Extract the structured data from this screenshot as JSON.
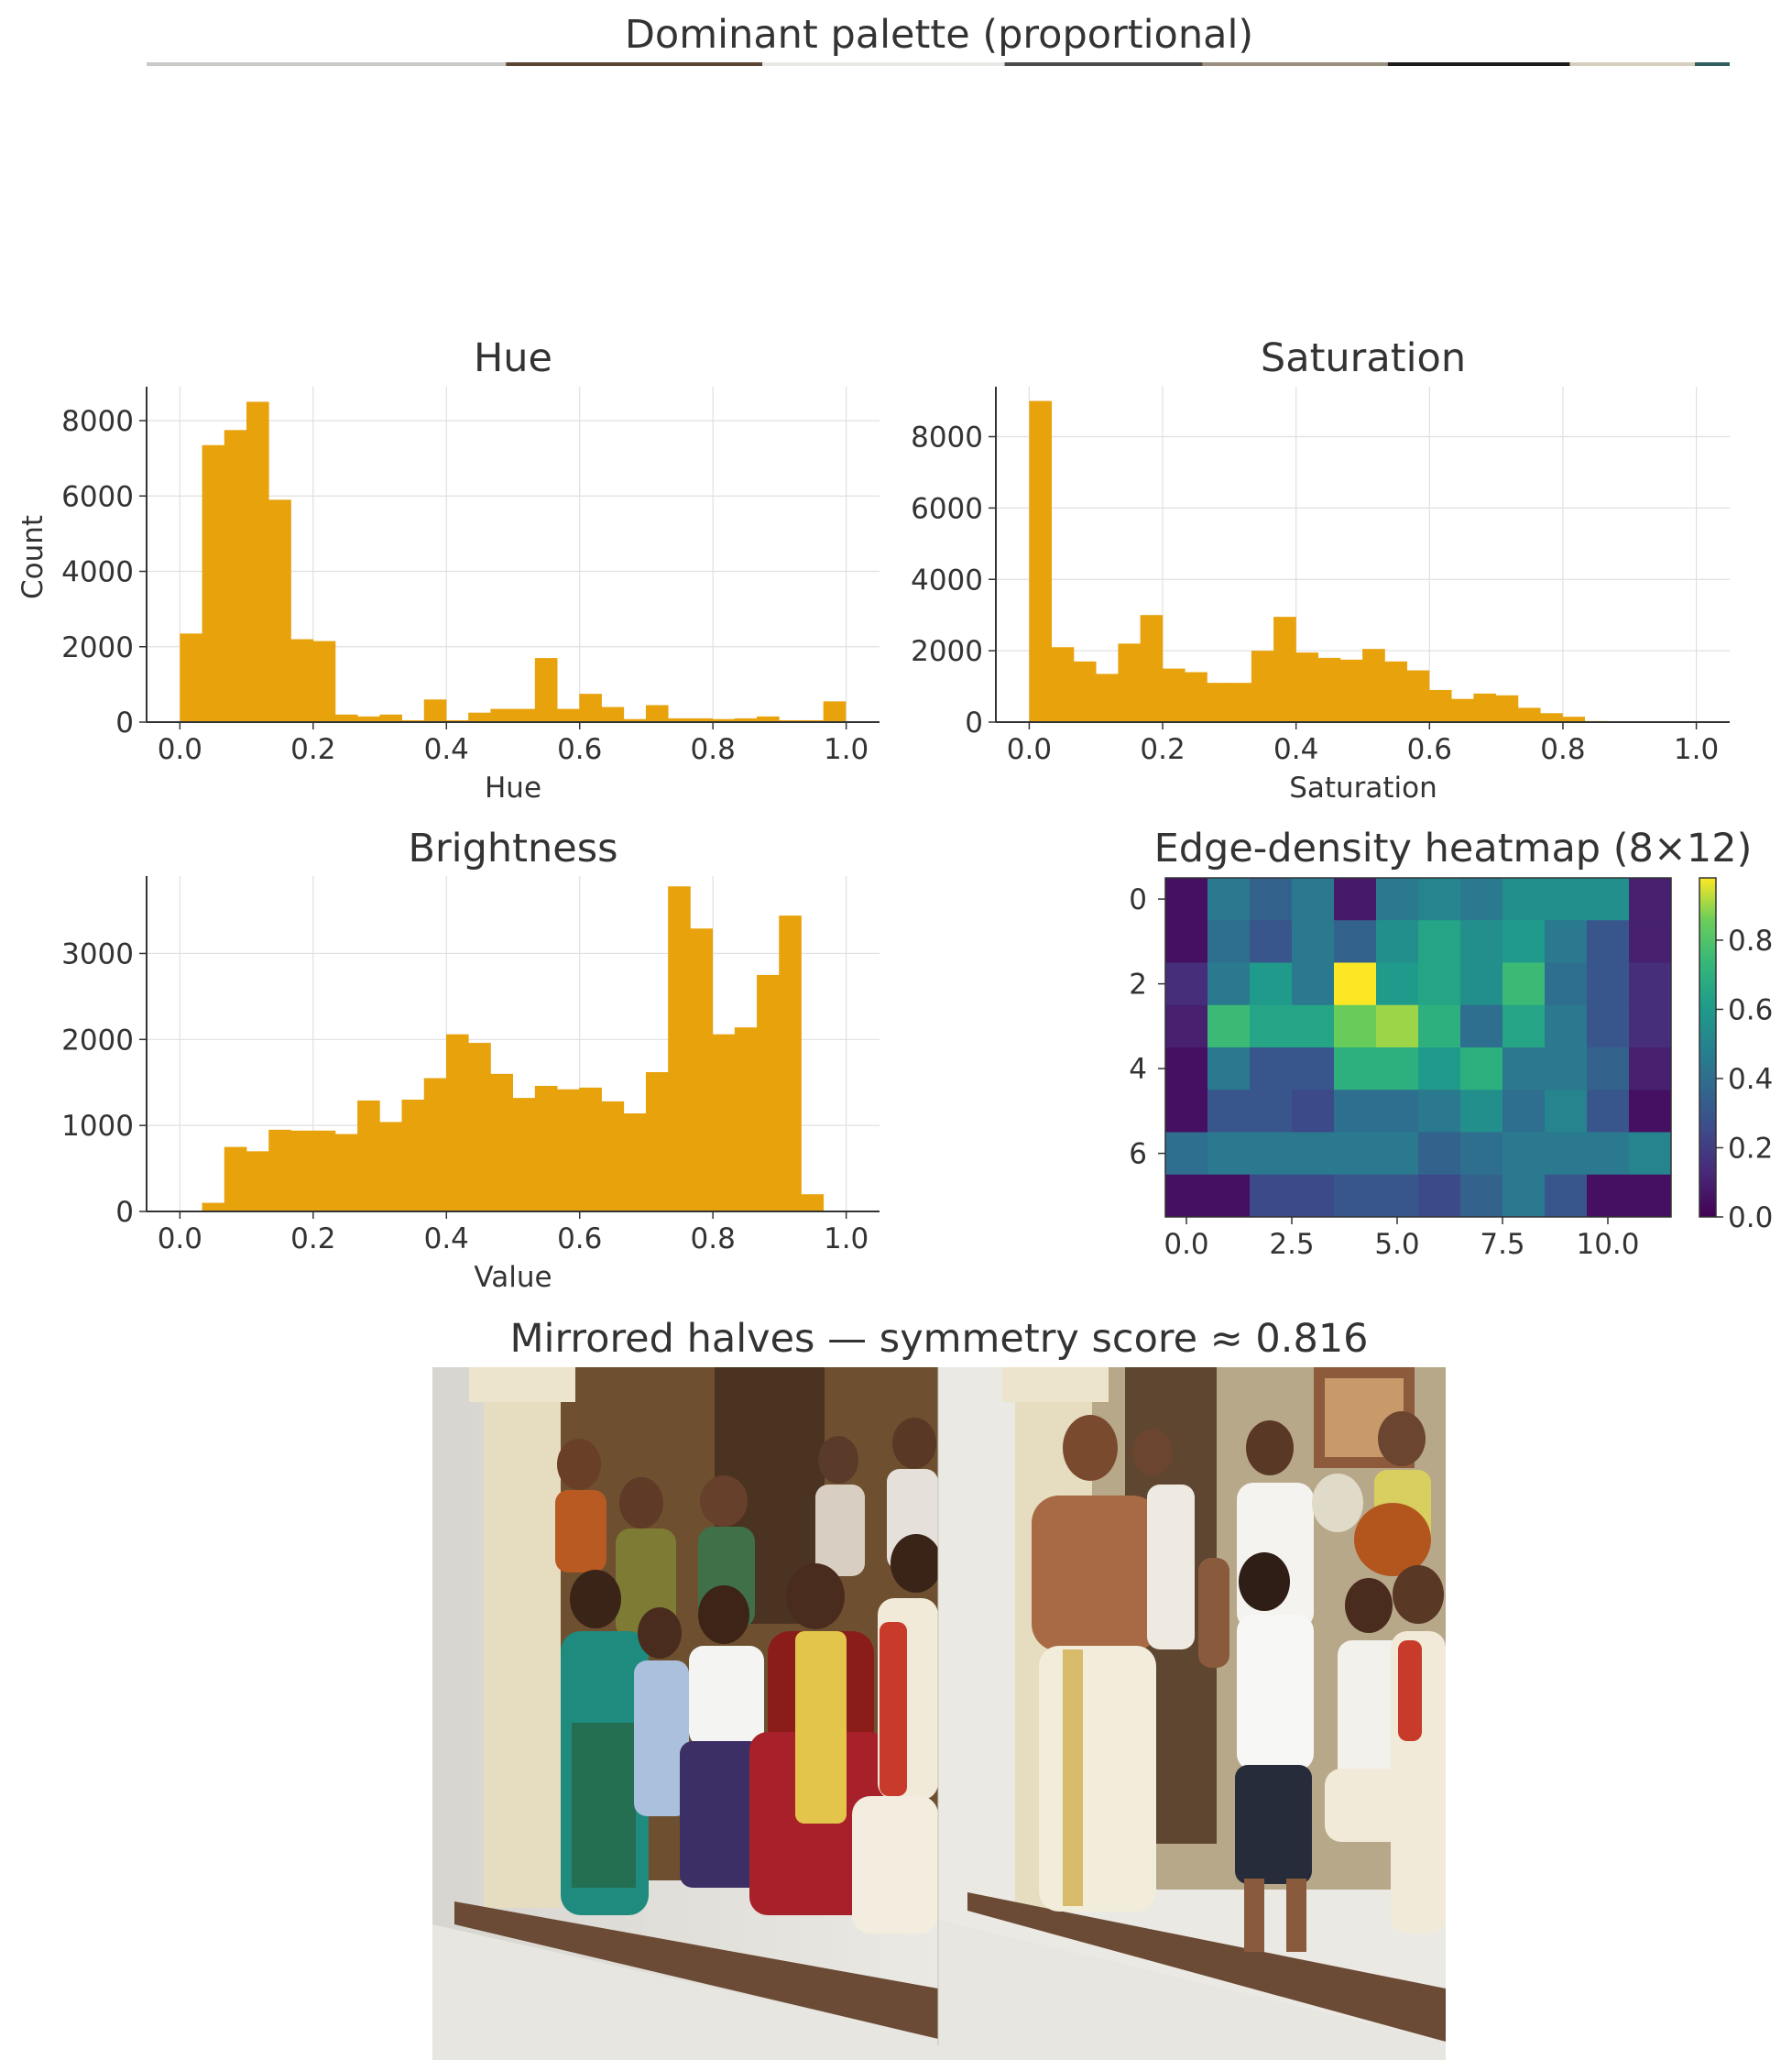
{
  "palette": {
    "title": "Dominant palette (proportional)",
    "swatches": [
      {
        "color": "#c9c9c6",
        "share": 0.227
      },
      {
        "color": "#5a4532",
        "share": 0.162
      },
      {
        "color": "#e9e8e4",
        "share": 0.153
      },
      {
        "color": "#4a4a48",
        "share": 0.125
      },
      {
        "color": "#9a8f7e",
        "share": 0.117
      },
      {
        "color": "#1e1c1a",
        "share": 0.115
      },
      {
        "color": "#d6cfbd",
        "share": 0.079
      },
      {
        "color": "#2f5e5e",
        "share": 0.022
      }
    ]
  },
  "hue": {
    "title": "Hue",
    "xlabel": "Hue",
    "ylabel": "Count",
    "xticks": [
      "0.0",
      "0.2",
      "0.4",
      "0.6",
      "0.8",
      "1.0"
    ],
    "yticks": [
      "0",
      "2000",
      "4000",
      "6000",
      "8000"
    ]
  },
  "saturation": {
    "title": "Saturation",
    "xlabel": "Saturation",
    "ylabel": "",
    "xticks": [
      "0.0",
      "0.2",
      "0.4",
      "0.6",
      "0.8",
      "1.0"
    ],
    "yticks": [
      "0",
      "2000",
      "4000",
      "6000",
      "8000"
    ]
  },
  "brightness": {
    "title": "Brightness",
    "xlabel": "Value",
    "ylabel": "",
    "xticks": [
      "0.0",
      "0.2",
      "0.4",
      "0.6",
      "0.8",
      "1.0"
    ],
    "yticks": [
      "0",
      "1000",
      "2000",
      "3000"
    ]
  },
  "heatmap": {
    "title": "Edge-density heatmap (8×12)",
    "xticks": [
      "0.0",
      "2.5",
      "5.0",
      "7.5",
      "10.0"
    ],
    "yticks": [
      "0",
      "2",
      "4",
      "6"
    ],
    "cbar_ticks": [
      "0.0",
      "0.2",
      "0.4",
      "0.6",
      "0.8"
    ]
  },
  "symmetry": {
    "title": "Mirrored halves — symmetry score ≈ 0.816"
  },
  "chart_data": [
    {
      "type": "bar",
      "name": "hue_histogram",
      "title": "Hue",
      "xlabel": "Hue",
      "ylabel": "Count",
      "bin_start": 0.0,
      "bin_width": 0.0333,
      "color": "#e8a20c",
      "values": [
        2350,
        7350,
        7750,
        8500,
        5900,
        2200,
        2150,
        200,
        150,
        200,
        50,
        600,
        50,
        250,
        350,
        350,
        1700,
        350,
        750,
        400,
        80,
        450,
        100,
        100,
        80,
        100,
        150,
        50,
        50,
        550
      ],
      "xlim": [
        -0.05,
        1.05
      ],
      "ylim": [
        0,
        8900
      ],
      "grid": true
    },
    {
      "type": "bar",
      "name": "saturation_histogram",
      "title": "Saturation",
      "xlabel": "Saturation",
      "bin_start": 0.0,
      "bin_width": 0.0333,
      "color": "#e8a20c",
      "values": [
        9000,
        2100,
        1700,
        1350,
        2200,
        3000,
        1500,
        1400,
        1100,
        1100,
        2000,
        2950,
        1950,
        1800,
        1750,
        2050,
        1700,
        1450,
        900,
        650,
        800,
        750,
        400,
        250,
        150,
        30,
        0,
        0,
        0,
        0
      ],
      "xlim": [
        -0.05,
        1.05
      ],
      "ylim": [
        0,
        9400
      ],
      "grid": true
    },
    {
      "type": "bar",
      "name": "brightness_histogram",
      "title": "Brightness",
      "xlabel": "Value",
      "bin_start": 0.0,
      "bin_width": 0.0333,
      "color": "#e8a20c",
      "values": [
        0,
        100,
        750,
        700,
        950,
        940,
        940,
        900,
        1290,
        1040,
        1300,
        1550,
        2060,
        1960,
        1600,
        1320,
        1460,
        1420,
        1440,
        1280,
        1140,
        1620,
        3780,
        3290,
        2060,
        2140,
        2750,
        3440,
        200,
        0
      ],
      "xlim": [
        -0.05,
        1.05
      ],
      "ylim": [
        0,
        3900
      ],
      "grid": true
    },
    {
      "type": "heatmap",
      "name": "edge_density",
      "title": "Edge-density heatmap (8×12)",
      "rows": 8,
      "cols": 12,
      "colormap": "viridis",
      "vmin": 0.0,
      "vmax": 0.98,
      "values": [
        [
          0.05,
          0.45,
          0.35,
          0.45,
          0.08,
          0.45,
          0.5,
          0.45,
          0.55,
          0.55,
          0.55,
          0.1
        ],
        [
          0.05,
          0.4,
          0.3,
          0.45,
          0.35,
          0.55,
          0.65,
          0.55,
          0.6,
          0.45,
          0.3,
          0.1
        ],
        [
          0.15,
          0.45,
          0.6,
          0.45,
          0.98,
          0.6,
          0.65,
          0.55,
          0.75,
          0.4,
          0.3,
          0.15
        ],
        [
          0.1,
          0.75,
          0.65,
          0.65,
          0.85,
          0.9,
          0.7,
          0.4,
          0.65,
          0.45,
          0.3,
          0.15
        ],
        [
          0.05,
          0.45,
          0.3,
          0.3,
          0.7,
          0.7,
          0.6,
          0.7,
          0.45,
          0.45,
          0.35,
          0.1
        ],
        [
          0.05,
          0.3,
          0.3,
          0.25,
          0.4,
          0.4,
          0.45,
          0.55,
          0.4,
          0.5,
          0.3,
          0.05
        ],
        [
          0.4,
          0.45,
          0.45,
          0.45,
          0.45,
          0.45,
          0.35,
          0.4,
          0.45,
          0.45,
          0.45,
          0.5
        ],
        [
          0.05,
          0.05,
          0.25,
          0.25,
          0.3,
          0.3,
          0.25,
          0.35,
          0.45,
          0.3,
          0.05,
          0.05
        ]
      ]
    }
  ]
}
